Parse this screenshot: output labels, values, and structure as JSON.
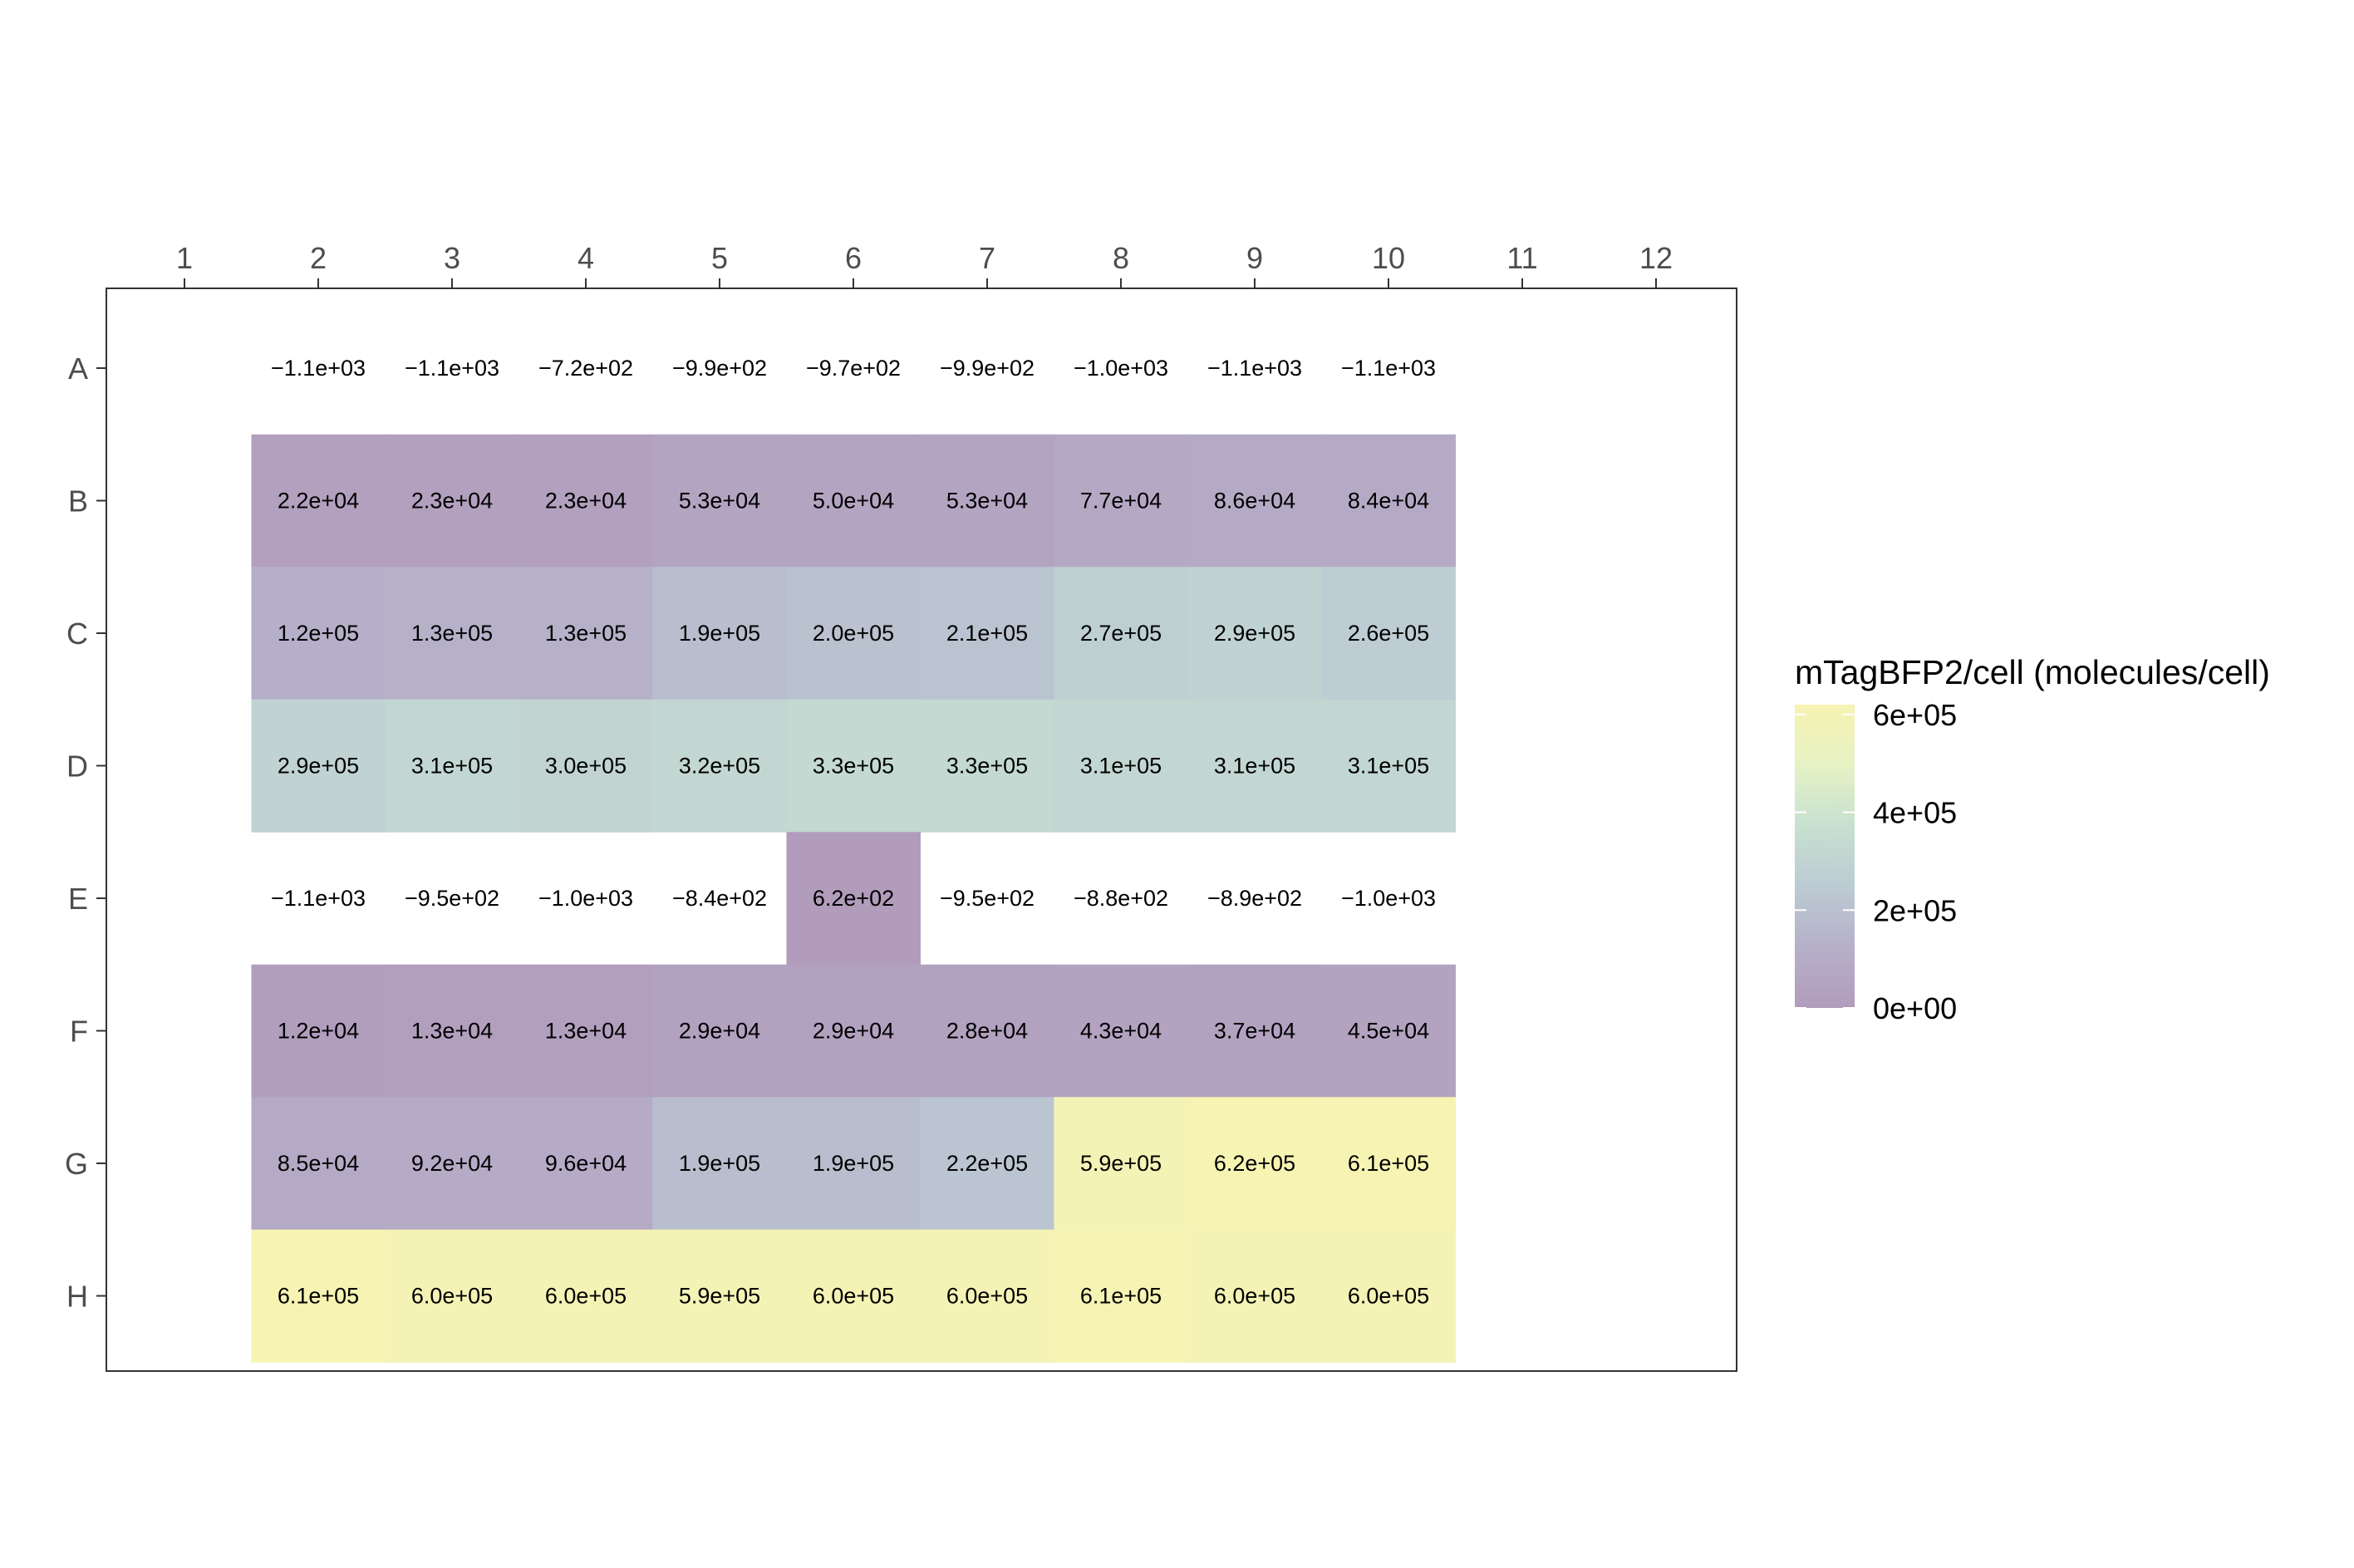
{
  "chart_data": {
    "type": "heatmap",
    "title": "",
    "xlabel": "",
    "ylabel": "",
    "columns": [
      "1",
      "2",
      "3",
      "4",
      "5",
      "6",
      "7",
      "8",
      "9",
      "10",
      "11",
      "12"
    ],
    "rows": [
      "A",
      "B",
      "C",
      "D",
      "E",
      "F",
      "G",
      "H"
    ],
    "cells": [
      {
        "row": "A",
        "col": "2",
        "value": -1100,
        "label": "−1.1e+03"
      },
      {
        "row": "A",
        "col": "3",
        "value": -1100,
        "label": "−1.1e+03"
      },
      {
        "row": "A",
        "col": "4",
        "value": -720,
        "label": "−7.2e+02"
      },
      {
        "row": "A",
        "col": "5",
        "value": -990,
        "label": "−9.9e+02"
      },
      {
        "row": "A",
        "col": "6",
        "value": -970,
        "label": "−9.7e+02"
      },
      {
        "row": "A",
        "col": "7",
        "value": -990,
        "label": "−9.9e+02"
      },
      {
        "row": "A",
        "col": "8",
        "value": -1000,
        "label": "−1.0e+03"
      },
      {
        "row": "A",
        "col": "9",
        "value": -1100,
        "label": "−1.1e+03"
      },
      {
        "row": "A",
        "col": "10",
        "value": -1100,
        "label": "−1.1e+03"
      },
      {
        "row": "B",
        "col": "2",
        "value": 22000,
        "label": "2.2e+04"
      },
      {
        "row": "B",
        "col": "3",
        "value": 23000,
        "label": "2.3e+04"
      },
      {
        "row": "B",
        "col": "4",
        "value": 23000,
        "label": "2.3e+04"
      },
      {
        "row": "B",
        "col": "5",
        "value": 53000,
        "label": "5.3e+04"
      },
      {
        "row": "B",
        "col": "6",
        "value": 50000,
        "label": "5.0e+04"
      },
      {
        "row": "B",
        "col": "7",
        "value": 53000,
        "label": "5.3e+04"
      },
      {
        "row": "B",
        "col": "8",
        "value": 77000,
        "label": "7.7e+04"
      },
      {
        "row": "B",
        "col": "9",
        "value": 86000,
        "label": "8.6e+04"
      },
      {
        "row": "B",
        "col": "10",
        "value": 84000,
        "label": "8.4e+04"
      },
      {
        "row": "C",
        "col": "2",
        "value": 120000,
        "label": "1.2e+05"
      },
      {
        "row": "C",
        "col": "3",
        "value": 130000,
        "label": "1.3e+05"
      },
      {
        "row": "C",
        "col": "4",
        "value": 130000,
        "label": "1.3e+05"
      },
      {
        "row": "C",
        "col": "5",
        "value": 190000,
        "label": "1.9e+05"
      },
      {
        "row": "C",
        "col": "6",
        "value": 200000,
        "label": "2.0e+05"
      },
      {
        "row": "C",
        "col": "7",
        "value": 210000,
        "label": "2.1e+05"
      },
      {
        "row": "C",
        "col": "8",
        "value": 270000,
        "label": "2.7e+05"
      },
      {
        "row": "C",
        "col": "9",
        "value": 290000,
        "label": "2.9e+05"
      },
      {
        "row": "C",
        "col": "10",
        "value": 260000,
        "label": "2.6e+05"
      },
      {
        "row": "D",
        "col": "2",
        "value": 290000,
        "label": "2.9e+05"
      },
      {
        "row": "D",
        "col": "3",
        "value": 310000,
        "label": "3.1e+05"
      },
      {
        "row": "D",
        "col": "4",
        "value": 300000,
        "label": "3.0e+05"
      },
      {
        "row": "D",
        "col": "5",
        "value": 320000,
        "label": "3.2e+05"
      },
      {
        "row": "D",
        "col": "6",
        "value": 330000,
        "label": "3.3e+05"
      },
      {
        "row": "D",
        "col": "7",
        "value": 330000,
        "label": "3.3e+05"
      },
      {
        "row": "D",
        "col": "8",
        "value": 310000,
        "label": "3.1e+05"
      },
      {
        "row": "D",
        "col": "9",
        "value": 310000,
        "label": "3.1e+05"
      },
      {
        "row": "D",
        "col": "10",
        "value": 310000,
        "label": "3.1e+05"
      },
      {
        "row": "E",
        "col": "2",
        "value": -1100,
        "label": "−1.1e+03"
      },
      {
        "row": "E",
        "col": "3",
        "value": -950,
        "label": "−9.5e+02"
      },
      {
        "row": "E",
        "col": "4",
        "value": -1000,
        "label": "−1.0e+03"
      },
      {
        "row": "E",
        "col": "5",
        "value": -840,
        "label": "−8.4e+02"
      },
      {
        "row": "E",
        "col": "6",
        "value": 620,
        "label": "6.2e+02"
      },
      {
        "row": "E",
        "col": "7",
        "value": -950,
        "label": "−9.5e+02"
      },
      {
        "row": "E",
        "col": "8",
        "value": -880,
        "label": "−8.8e+02"
      },
      {
        "row": "E",
        "col": "9",
        "value": -890,
        "label": "−8.9e+02"
      },
      {
        "row": "E",
        "col": "10",
        "value": -1000,
        "label": "−1.0e+03"
      },
      {
        "row": "F",
        "col": "2",
        "value": 12000,
        "label": "1.2e+04"
      },
      {
        "row": "F",
        "col": "3",
        "value": 13000,
        "label": "1.3e+04"
      },
      {
        "row": "F",
        "col": "4",
        "value": 13000,
        "label": "1.3e+04"
      },
      {
        "row": "F",
        "col": "5",
        "value": 29000,
        "label": "2.9e+04"
      },
      {
        "row": "F",
        "col": "6",
        "value": 29000,
        "label": "2.9e+04"
      },
      {
        "row": "F",
        "col": "7",
        "value": 28000,
        "label": "2.8e+04"
      },
      {
        "row": "F",
        "col": "8",
        "value": 43000,
        "label": "4.3e+04"
      },
      {
        "row": "F",
        "col": "9",
        "value": 37000,
        "label": "3.7e+04"
      },
      {
        "row": "F",
        "col": "10",
        "value": 45000,
        "label": "4.5e+04"
      },
      {
        "row": "G",
        "col": "2",
        "value": 85000,
        "label": "8.5e+04"
      },
      {
        "row": "G",
        "col": "3",
        "value": 92000,
        "label": "9.2e+04"
      },
      {
        "row": "G",
        "col": "4",
        "value": 96000,
        "label": "9.6e+04"
      },
      {
        "row": "G",
        "col": "5",
        "value": 190000,
        "label": "1.9e+05"
      },
      {
        "row": "G",
        "col": "6",
        "value": 190000,
        "label": "1.9e+05"
      },
      {
        "row": "G",
        "col": "7",
        "value": 220000,
        "label": "2.2e+05"
      },
      {
        "row": "G",
        "col": "8",
        "value": 590000,
        "label": "5.9e+05"
      },
      {
        "row": "G",
        "col": "9",
        "value": 620000,
        "label": "6.2e+05"
      },
      {
        "row": "G",
        "col": "10",
        "value": 610000,
        "label": "6.1e+05"
      },
      {
        "row": "H",
        "col": "2",
        "value": 610000,
        "label": "6.1e+05"
      },
      {
        "row": "H",
        "col": "3",
        "value": 600000,
        "label": "6.0e+05"
      },
      {
        "row": "H",
        "col": "4",
        "value": 600000,
        "label": "6.0e+05"
      },
      {
        "row": "H",
        "col": "5",
        "value": 590000,
        "label": "5.9e+05"
      },
      {
        "row": "H",
        "col": "6",
        "value": 600000,
        "label": "6.0e+05"
      },
      {
        "row": "H",
        "col": "7",
        "value": 600000,
        "label": "6.0e+05"
      },
      {
        "row": "H",
        "col": "8",
        "value": 610000,
        "label": "6.1e+05"
      },
      {
        "row": "H",
        "col": "9",
        "value": 600000,
        "label": "6.0e+05"
      },
      {
        "row": "H",
        "col": "10",
        "value": 600000,
        "label": "6.0e+05"
      }
    ],
    "missing_fill_for_negative": true,
    "legend": {
      "title": "mTagBFP2/cell (molecules/cell)",
      "placement": "right",
      "ticks": [
        {
          "value": 0,
          "label": "0e+00"
        },
        {
          "value": 200000,
          "label": "2e+05"
        },
        {
          "value": 400000,
          "label": "4e+05"
        },
        {
          "value": 600000,
          "label": "6e+05"
        }
      ],
      "range": [
        0,
        620000
      ]
    },
    "color_scale": {
      "stops": [
        "#b19cbc",
        "#b6b0c9",
        "#bccbd3",
        "#c7e0d0",
        "#e6f2c4",
        "#f7f3b2"
      ],
      "alpha_note": "viridis at reduced opacity"
    },
    "grid": false
  }
}
